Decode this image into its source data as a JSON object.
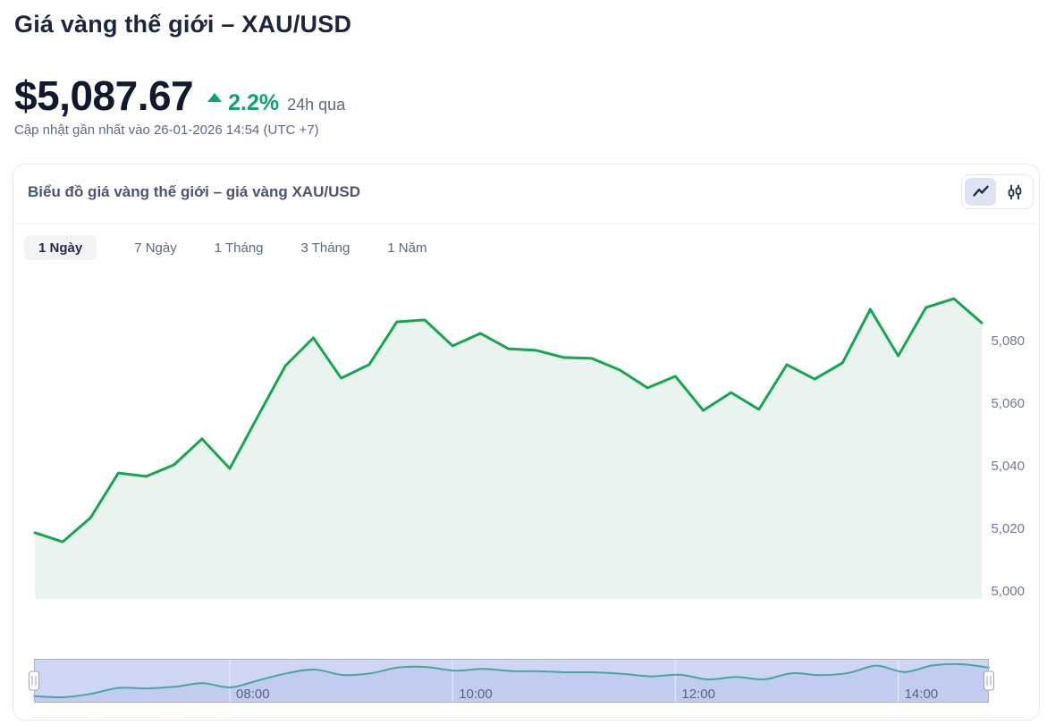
{
  "page": {
    "title": "Giá vàng thế giới – XAU/USD",
    "price": "$5,087.67",
    "change_percent": "2.2%",
    "change_direction": "up",
    "change_period": "24h qua",
    "updated": "Cập nhật gần nhất vào 26-01-2026 14:54 (UTC +7)"
  },
  "card": {
    "header": "Biểu đồ giá vàng thế giới – giá vàng XAU/USD",
    "chart_type_icons": [
      "line-chart-icon",
      "candlestick-icon"
    ],
    "active_chart_type": "line-chart-icon",
    "range_tabs": [
      {
        "label": "1 Ngày",
        "active": true
      },
      {
        "label": "7 Ngày",
        "active": false
      },
      {
        "label": "1 Tháng",
        "active": false
      },
      {
        "label": "3 Tháng",
        "active": false
      },
      {
        "label": "1 Năm",
        "active": false
      }
    ]
  },
  "chart_data": {
    "type": "area",
    "title": "XAU/USD intraday price",
    "x": [
      "06:15",
      "06:30",
      "06:45",
      "07:00",
      "07:15",
      "07:30",
      "07:45",
      "08:00",
      "08:15",
      "08:30",
      "08:45",
      "09:00",
      "09:15",
      "09:30",
      "09:45",
      "10:00",
      "10:15",
      "10:30",
      "10:45",
      "11:00",
      "11:15",
      "11:30",
      "11:45",
      "12:00",
      "12:15",
      "12:30",
      "12:45",
      "13:00",
      "13:15",
      "13:30",
      "13:45",
      "14:00",
      "14:15",
      "14:30",
      "14:45"
    ],
    "values": [
      5018.6,
      5015.7,
      5023.4,
      5037.7,
      5036.6,
      5040.3,
      5048.6,
      5039.1,
      5055.7,
      5072.0,
      5080.9,
      5068.0,
      5072.3,
      5086.0,
      5086.6,
      5078.3,
      5082.3,
      5077.4,
      5076.9,
      5074.6,
      5074.3,
      5070.6,
      5064.9,
      5068.6,
      5057.7,
      5063.4,
      5058.0,
      5072.3,
      5067.7,
      5072.9,
      5090.0,
      5075.1,
      5090.6,
      5093.4,
      5085.7
    ],
    "xlabel": "",
    "ylabel": "",
    "yticks": [
      5000,
      5020,
      5040,
      5060,
      5080
    ],
    "ytick_labels": [
      "5,000",
      "5,020",
      "5,040",
      "5,060",
      "5,080"
    ],
    "xticks": [
      "08:00",
      "10:00",
      "12:00",
      "14:00"
    ],
    "ylim": [
      4997,
      5096
    ],
    "grid": false,
    "legend": false,
    "line_color": "#17a552",
    "fill_color": "#e9f4ee",
    "ytick_color": "#6e7992",
    "navigator": {
      "line_color": "#4ba49e",
      "area_color": "#c2ccf0",
      "mask_color": "#ced6f4",
      "outline_color": "#a9b0c8",
      "gridline_color": "#e0e5fa",
      "label_color": "#596480",
      "handle_fill": "#ffffff",
      "handle_stroke": "#9aa3b8"
    }
  }
}
